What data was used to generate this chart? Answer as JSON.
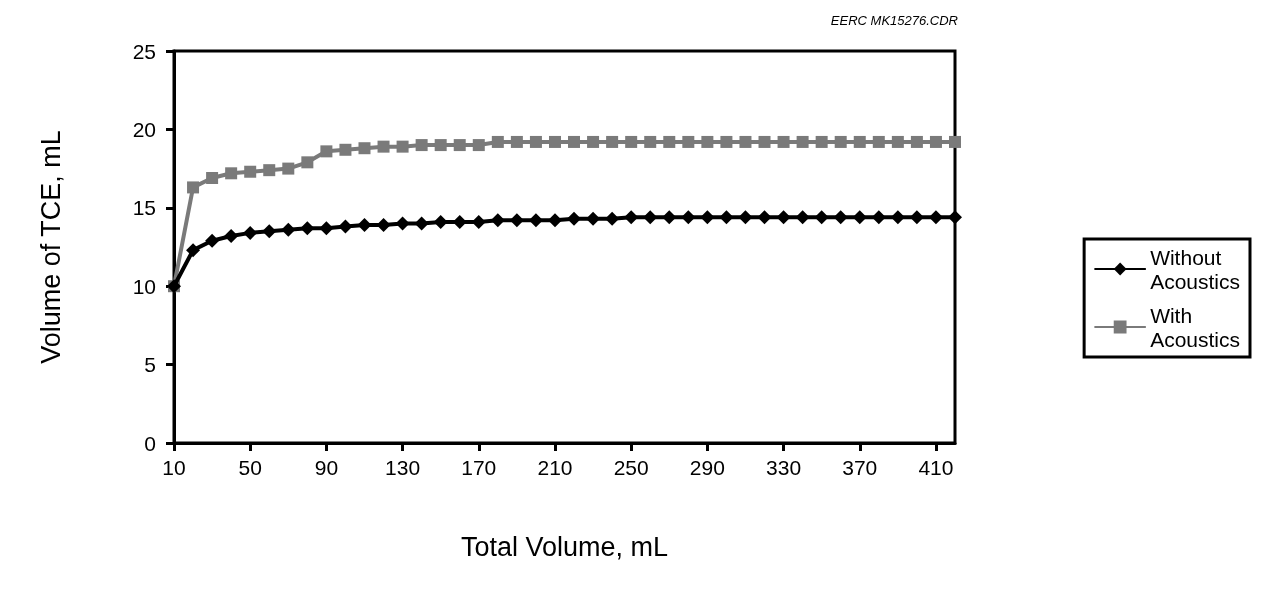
{
  "chart_data": {
    "type": "line",
    "xlabel": "Total Volume, mL",
    "ylabel": "Volume of TCE, mL",
    "annotations": [
      "EERC MK15276.CDR"
    ],
    "categories": [
      "10",
      null,
      null,
      null,
      "50",
      null,
      null,
      null,
      "90",
      null,
      null,
      null,
      "130",
      null,
      null,
      null,
      "170",
      null,
      null,
      null,
      "210",
      null,
      null,
      null,
      "250",
      null,
      null,
      null,
      "290",
      null,
      null,
      null,
      "330",
      null,
      null,
      null,
      "370",
      null,
      null,
      null,
      "410",
      null
    ],
    "series": [
      {
        "name": "Without\nAcoustics",
        "color": "#000000",
        "marker": "diamond",
        "values": [
          10,
          12.3,
          12.9,
          13.2,
          13.4,
          13.5,
          13.6,
          13.7,
          13.7,
          13.8,
          13.9,
          13.9,
          14.0,
          14.0,
          14.1,
          14.1,
          14.1,
          14.2,
          14.2,
          14.2,
          14.2,
          14.3,
          14.3,
          14.3,
          14.4,
          14.4,
          14.4,
          14.4,
          14.4,
          14.4,
          14.4,
          14.4,
          14.4,
          14.4,
          14.4,
          14.4,
          14.4,
          14.4,
          14.4,
          14.4,
          14.4,
          14.4
        ]
      },
      {
        "name": "With\nAcoustics",
        "color": "#7a7a7a",
        "marker": "square",
        "values": [
          10,
          16.3,
          16.9,
          17.2,
          17.3,
          17.4,
          17.5,
          17.9,
          18.6,
          18.7,
          18.8,
          18.9,
          18.9,
          19.0,
          19.0,
          19.0,
          19.0,
          19.2,
          19.2,
          19.2,
          19.2,
          19.2,
          19.2,
          19.2,
          19.2,
          19.2,
          19.2,
          19.2,
          19.2,
          19.2,
          19.2,
          19.2,
          19.2,
          19.2,
          19.2,
          19.2,
          19.2,
          19.2,
          19.2,
          19.2,
          19.2,
          19.2
        ]
      }
    ],
    "ylim": [
      0,
      25
    ],
    "yticks": [
      0,
      5,
      10,
      15,
      20,
      25
    ],
    "grid": false,
    "legend": "right",
    "line_style": "solid"
  }
}
